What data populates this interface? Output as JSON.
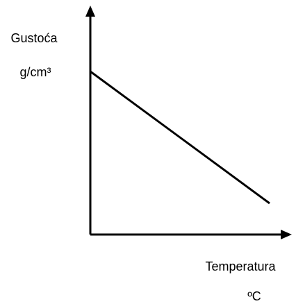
{
  "y_axis": {
    "label": "Gustoća",
    "unit": "g/cm³"
  },
  "x_axis": {
    "label": "Temperatura",
    "unit": "ºC"
  }
}
